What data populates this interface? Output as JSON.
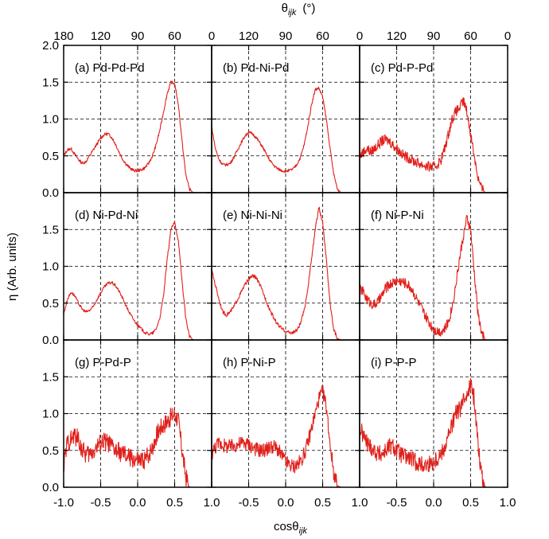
{
  "figure": {
    "top_axis_title": "θ",
    "top_axis_title_sub": "ijk",
    "top_axis_title_unit": "(°)",
    "bottom_axis_title": "cosθ",
    "bottom_axis_title_sub": "ijk",
    "y_axis_title": "η   (Arb. units)"
  },
  "chart_data": {
    "type": "line",
    "layout": "3x3 grid of panels with shared axes",
    "xlim": [
      -1.0,
      1.0
    ],
    "ylim": [
      0.0,
      2.0
    ],
    "x_ticks": [
      -1.0,
      -0.5,
      0.0,
      0.5,
      1.0
    ],
    "x_tick_labels": [
      "-1.0",
      "-0.5",
      "0.0",
      "0.5",
      "1.0"
    ],
    "y_ticks": [
      0.0,
      0.5,
      1.0,
      1.5,
      2.0
    ],
    "y_tick_labels": [
      "0.0",
      "0.5",
      "1.0",
      "1.5",
      "2.0"
    ],
    "top_ticks_deg": [
      180,
      120,
      90,
      60,
      0
    ],
    "top_tick_labels": [
      "180",
      "120",
      "90",
      "60",
      "0"
    ],
    "grid": true,
    "series_color": "#e0201b",
    "panels": [
      {
        "label": "(a) Pd-Pd-Pd",
        "noise": 0.02,
        "x": [
          -1.0,
          -0.95,
          -0.9,
          -0.85,
          -0.8,
          -0.75,
          -0.7,
          -0.65,
          -0.6,
          -0.55,
          -0.5,
          -0.45,
          -0.4,
          -0.35,
          -0.3,
          -0.25,
          -0.2,
          -0.15,
          -0.1,
          -0.05,
          0.0,
          0.05,
          0.1,
          0.15,
          0.2,
          0.25,
          0.3,
          0.35,
          0.4,
          0.45,
          0.5,
          0.55,
          0.6,
          0.65,
          0.7,
          0.75
        ],
        "y": [
          0.5,
          0.58,
          0.6,
          0.52,
          0.45,
          0.4,
          0.42,
          0.5,
          0.58,
          0.66,
          0.74,
          0.79,
          0.8,
          0.75,
          0.66,
          0.55,
          0.45,
          0.38,
          0.33,
          0.3,
          0.3,
          0.31,
          0.34,
          0.4,
          0.5,
          0.65,
          0.85,
          1.1,
          1.35,
          1.5,
          1.48,
          1.2,
          0.7,
          0.25,
          0.05,
          0.0
        ]
      },
      {
        "label": "(b) Pd-Ni-Pd",
        "noise": 0.02,
        "x": [
          -1.0,
          -0.95,
          -0.9,
          -0.85,
          -0.8,
          -0.75,
          -0.7,
          -0.65,
          -0.6,
          -0.55,
          -0.5,
          -0.45,
          -0.4,
          -0.35,
          -0.3,
          -0.25,
          -0.2,
          -0.15,
          -0.1,
          -0.05,
          0.0,
          0.05,
          0.1,
          0.15,
          0.2,
          0.25,
          0.3,
          0.35,
          0.4,
          0.45,
          0.5,
          0.55,
          0.6,
          0.65,
          0.7,
          0.75
        ],
        "y": [
          0.9,
          0.6,
          0.45,
          0.38,
          0.38,
          0.4,
          0.48,
          0.58,
          0.68,
          0.77,
          0.82,
          0.8,
          0.75,
          0.68,
          0.6,
          0.5,
          0.42,
          0.36,
          0.32,
          0.3,
          0.29,
          0.3,
          0.32,
          0.38,
          0.48,
          0.65,
          0.9,
          1.2,
          1.4,
          1.42,
          1.3,
          1.0,
          0.6,
          0.25,
          0.05,
          0.0
        ]
      },
      {
        "label": "(c) Pd-P-Pd",
        "noise": 0.07,
        "x": [
          -1.0,
          -0.95,
          -0.9,
          -0.85,
          -0.8,
          -0.75,
          -0.7,
          -0.65,
          -0.6,
          -0.55,
          -0.5,
          -0.45,
          -0.4,
          -0.35,
          -0.3,
          -0.25,
          -0.2,
          -0.15,
          -0.1,
          -0.05,
          0.0,
          0.05,
          0.1,
          0.15,
          0.2,
          0.25,
          0.3,
          0.35,
          0.4,
          0.45,
          0.5,
          0.55,
          0.6,
          0.65,
          0.7,
          0.75
        ],
        "y": [
          0.5,
          0.55,
          0.6,
          0.55,
          0.6,
          0.65,
          0.7,
          0.72,
          0.7,
          0.65,
          0.6,
          0.55,
          0.5,
          0.48,
          0.45,
          0.42,
          0.4,
          0.38,
          0.36,
          0.35,
          0.35,
          0.38,
          0.45,
          0.6,
          0.8,
          1.0,
          1.1,
          1.15,
          1.25,
          1.1,
          0.8,
          0.5,
          0.2,
          0.05,
          0.0,
          0.0
        ]
      },
      {
        "label": "(d) Ni-Pd-Ni",
        "noise": 0.02,
        "x": [
          -1.0,
          -0.95,
          -0.9,
          -0.85,
          -0.8,
          -0.75,
          -0.7,
          -0.65,
          -0.6,
          -0.55,
          -0.5,
          -0.45,
          -0.4,
          -0.35,
          -0.3,
          -0.25,
          -0.2,
          -0.15,
          -0.1,
          -0.05,
          0.0,
          0.05,
          0.1,
          0.15,
          0.2,
          0.25,
          0.3,
          0.35,
          0.4,
          0.45,
          0.5,
          0.55,
          0.6,
          0.65,
          0.7,
          0.75
        ],
        "y": [
          0.35,
          0.55,
          0.65,
          0.6,
          0.5,
          0.42,
          0.38,
          0.4,
          0.45,
          0.55,
          0.64,
          0.72,
          0.77,
          0.78,
          0.74,
          0.66,
          0.56,
          0.45,
          0.35,
          0.27,
          0.2,
          0.15,
          0.1,
          0.08,
          0.09,
          0.15,
          0.3,
          0.6,
          1.1,
          1.5,
          1.6,
          1.35,
          0.8,
          0.3,
          0.05,
          0.0
        ]
      },
      {
        "label": "(e) Ni-Ni-Ni",
        "noise": 0.025,
        "x": [
          -1.0,
          -0.95,
          -0.9,
          -0.85,
          -0.8,
          -0.75,
          -0.7,
          -0.65,
          -0.6,
          -0.55,
          -0.5,
          -0.45,
          -0.4,
          -0.35,
          -0.3,
          -0.25,
          -0.2,
          -0.15,
          -0.1,
          -0.05,
          0.0,
          0.05,
          0.1,
          0.15,
          0.2,
          0.25,
          0.3,
          0.35,
          0.4,
          0.45,
          0.5,
          0.55,
          0.6,
          0.65,
          0.7,
          0.75
        ],
        "y": [
          0.95,
          0.75,
          0.55,
          0.38,
          0.34,
          0.38,
          0.45,
          0.55,
          0.65,
          0.75,
          0.82,
          0.87,
          0.85,
          0.75,
          0.63,
          0.5,
          0.38,
          0.28,
          0.2,
          0.15,
          0.12,
          0.1,
          0.1,
          0.13,
          0.22,
          0.4,
          0.7,
          1.1,
          1.5,
          1.8,
          1.6,
          1.1,
          0.5,
          0.15,
          0.02,
          0.0
        ]
      },
      {
        "label": "(f) Ni-P-Ni",
        "noise": 0.07,
        "x": [
          -1.0,
          -0.95,
          -0.9,
          -0.85,
          -0.8,
          -0.75,
          -0.7,
          -0.65,
          -0.6,
          -0.55,
          -0.5,
          -0.45,
          -0.4,
          -0.35,
          -0.3,
          -0.25,
          -0.2,
          -0.15,
          -0.1,
          -0.05,
          0.0,
          0.05,
          0.1,
          0.15,
          0.2,
          0.25,
          0.3,
          0.35,
          0.4,
          0.45,
          0.5,
          0.55,
          0.6,
          0.65,
          0.7,
          0.75
        ],
        "y": [
          0.7,
          0.65,
          0.55,
          0.5,
          0.48,
          0.52,
          0.6,
          0.7,
          0.75,
          0.78,
          0.8,
          0.8,
          0.78,
          0.75,
          0.7,
          0.6,
          0.5,
          0.4,
          0.3,
          0.22,
          0.15,
          0.12,
          0.12,
          0.15,
          0.25,
          0.45,
          0.75,
          1.1,
          1.4,
          1.65,
          1.5,
          0.9,
          0.35,
          0.08,
          0.0,
          0.0
        ]
      },
      {
        "label": "(g) P-Pd-P",
        "noise": 0.13,
        "x": [
          -1.0,
          -0.95,
          -0.9,
          -0.85,
          -0.8,
          -0.75,
          -0.7,
          -0.65,
          -0.6,
          -0.55,
          -0.5,
          -0.45,
          -0.4,
          -0.35,
          -0.3,
          -0.25,
          -0.2,
          -0.15,
          -0.1,
          -0.05,
          0.0,
          0.05,
          0.1,
          0.15,
          0.2,
          0.25,
          0.3,
          0.35,
          0.4,
          0.45,
          0.5,
          0.55,
          0.6,
          0.65,
          0.7,
          0.75
        ],
        "y": [
          0.3,
          0.6,
          0.65,
          0.7,
          0.65,
          0.5,
          0.45,
          0.45,
          0.5,
          0.55,
          0.6,
          0.62,
          0.6,
          0.55,
          0.5,
          0.48,
          0.45,
          0.42,
          0.4,
          0.38,
          0.35,
          0.35,
          0.38,
          0.45,
          0.55,
          0.7,
          0.8,
          0.85,
          0.9,
          0.95,
          1.0,
          0.9,
          0.5,
          0.15,
          0.0,
          0.0
        ]
      },
      {
        "label": "(h) P-Ni-P",
        "noise": 0.1,
        "x": [
          -1.0,
          -0.95,
          -0.9,
          -0.85,
          -0.8,
          -0.75,
          -0.7,
          -0.65,
          -0.6,
          -0.55,
          -0.5,
          -0.45,
          -0.4,
          -0.35,
          -0.3,
          -0.25,
          -0.2,
          -0.15,
          -0.1,
          -0.05,
          0.0,
          0.05,
          0.1,
          0.15,
          0.2,
          0.25,
          0.3,
          0.35,
          0.4,
          0.45,
          0.5,
          0.55,
          0.6,
          0.65,
          0.7,
          0.75
        ],
        "y": [
          0.45,
          0.55,
          0.6,
          0.58,
          0.55,
          0.55,
          0.56,
          0.58,
          0.6,
          0.6,
          0.58,
          0.55,
          0.52,
          0.5,
          0.5,
          0.52,
          0.55,
          0.55,
          0.5,
          0.42,
          0.35,
          0.3,
          0.28,
          0.3,
          0.35,
          0.45,
          0.6,
          0.8,
          1.0,
          1.2,
          1.3,
          1.1,
          0.6,
          0.2,
          0.02,
          0.0
        ]
      },
      {
        "label": "(i) P-P-P",
        "noise": 0.12,
        "x": [
          -1.0,
          -0.95,
          -0.9,
          -0.85,
          -0.8,
          -0.75,
          -0.7,
          -0.65,
          -0.6,
          -0.55,
          -0.5,
          -0.45,
          -0.4,
          -0.35,
          -0.3,
          -0.25,
          -0.2,
          -0.15,
          -0.1,
          -0.05,
          0.0,
          0.05,
          0.1,
          0.15,
          0.2,
          0.25,
          0.3,
          0.35,
          0.4,
          0.45,
          0.5,
          0.55,
          0.6,
          0.65,
          0.7,
          0.75
        ],
        "y": [
          0.8,
          0.7,
          0.6,
          0.55,
          0.5,
          0.45,
          0.45,
          0.5,
          0.55,
          0.55,
          0.5,
          0.45,
          0.42,
          0.4,
          0.38,
          0.35,
          0.32,
          0.3,
          0.3,
          0.32,
          0.35,
          0.4,
          0.45,
          0.55,
          0.7,
          0.85,
          1.0,
          1.05,
          1.15,
          1.3,
          1.4,
          1.2,
          0.6,
          0.15,
          0.0,
          0.0
        ]
      }
    ]
  }
}
